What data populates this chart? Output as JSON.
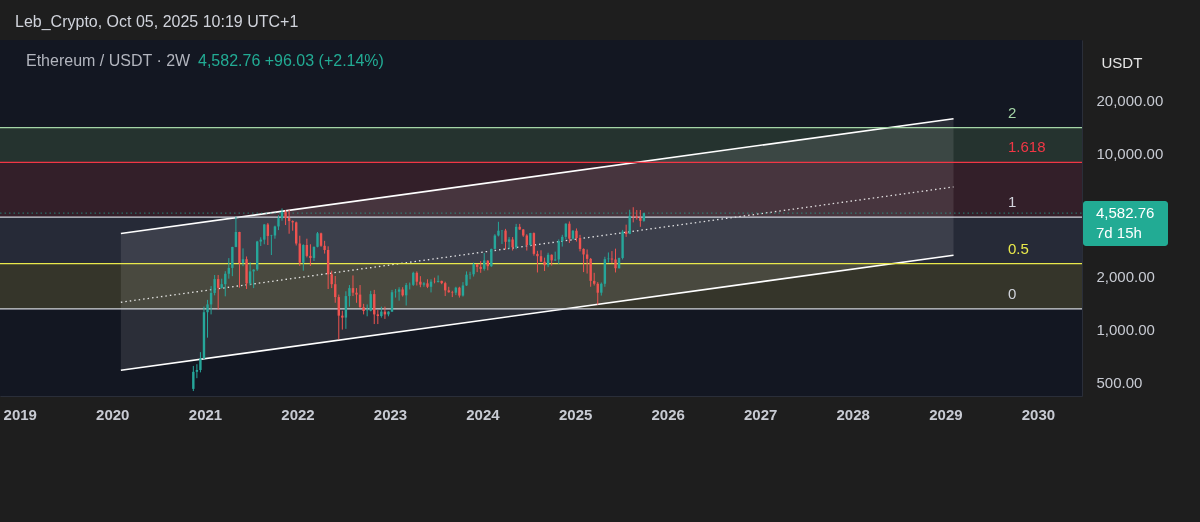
{
  "chart_data": {
    "type": "candlestick",
    "title": "Ethereum / USDT · 2W",
    "subtitle": "4,582.76 +96.03 (+2.14%)",
    "ylabel": "USDT",
    "annotations": [
      "Leb_Crypto, Oct 05, 2025 10:19 UTC+1",
      "7d 15h",
      {
        "text": "2",
        "x": "2029-09-05",
        "y": 14000
      },
      {
        "text": "1.618",
        "x": "2029-09-05",
        "y": 8900
      },
      {
        "text": "1",
        "x": "2029-09-05",
        "y": 4350
      },
      {
        "text": "0.5",
        "x": "2029-09-05",
        "y": 2370
      },
      {
        "text": "0",
        "x": "2029-09-05",
        "y": 1310
      }
    ],
    "log": true,
    "xlim": [
      "2018-10-15",
      "2030-06-24"
    ],
    "xticks": [
      "2019",
      "2020",
      "2021",
      "2022",
      "2023",
      "2024",
      "2025",
      "2026",
      "2027",
      "2028",
      "2029",
      "2030"
    ],
    "ylim": [
      420,
      44000
    ],
    "yticks": [
      {
        "value": 500,
        "label": "500.00"
      },
      {
        "value": 1000,
        "label": "1,000.00"
      },
      {
        "value": 2000,
        "label": "2,000.00"
      },
      {
        "value": 10000,
        "label": "10,000.00"
      },
      {
        "value": 20000,
        "label": "20,000.00"
      }
    ],
    "x": [
      "2020-11-16",
      "2020-11-30",
      "2020-12-14",
      "2020-12-28",
      "2021-01-11",
      "2021-01-25",
      "2021-02-08",
      "2021-02-22",
      "2021-03-08",
      "2021-03-22",
      "2021-04-05",
      "2021-04-19",
      "2021-05-03",
      "2021-05-17",
      "2021-05-31",
      "2021-06-14",
      "2021-06-28",
      "2021-07-12",
      "2021-07-26",
      "2021-08-09",
      "2021-08-23",
      "2021-09-06",
      "2021-09-20",
      "2021-10-04",
      "2021-10-18",
      "2021-11-01",
      "2021-11-15",
      "2021-11-29",
      "2021-12-13",
      "2021-12-27",
      "2022-01-10",
      "2022-01-24",
      "2022-02-07",
      "2022-02-21",
      "2022-03-07",
      "2022-03-21",
      "2022-04-04",
      "2022-04-18",
      "2022-05-02",
      "2022-05-16",
      "2022-05-30",
      "2022-06-13",
      "2022-06-27",
      "2022-07-11",
      "2022-07-25",
      "2022-08-08",
      "2022-08-22",
      "2022-09-05",
      "2022-09-19",
      "2022-10-03",
      "2022-10-17",
      "2022-10-31",
      "2022-11-14",
      "2022-11-28",
      "2022-12-12",
      "2022-12-26",
      "2023-01-09",
      "2023-01-23",
      "2023-02-06",
      "2023-02-20",
      "2023-03-06",
      "2023-03-20",
      "2023-04-03",
      "2023-04-17",
      "2023-05-01",
      "2023-05-15",
      "2023-05-29",
      "2023-06-12",
      "2023-06-26",
      "2023-07-10",
      "2023-07-24",
      "2023-08-07",
      "2023-08-21",
      "2023-09-04",
      "2023-09-18",
      "2023-10-02",
      "2023-10-16",
      "2023-10-30",
      "2023-11-13",
      "2023-11-27",
      "2023-12-11",
      "2023-12-25",
      "2024-01-08",
      "2024-01-22",
      "2024-02-05",
      "2024-02-19",
      "2024-03-04",
      "2024-03-18",
      "2024-04-01",
      "2024-04-15",
      "2024-04-29",
      "2024-05-13",
      "2024-05-27",
      "2024-06-10",
      "2024-06-24",
      "2024-07-08",
      "2024-07-22",
      "2024-08-05",
      "2024-08-19",
      "2024-09-02",
      "2024-09-16",
      "2024-09-30",
      "2024-10-14",
      "2024-10-28",
      "2024-11-11",
      "2024-11-25",
      "2024-12-09",
      "2024-12-23",
      "2025-01-06",
      "2025-01-20",
      "2025-02-03",
      "2025-02-17",
      "2025-03-03",
      "2025-03-17",
      "2025-03-31",
      "2025-04-14",
      "2025-04-28",
      "2025-05-12",
      "2025-05-26",
      "2025-06-09",
      "2025-06-23",
      "2025-07-07",
      "2025-07-21",
      "2025-08-04",
      "2025-08-18",
      "2025-09-01",
      "2025-09-15",
      "2025-09-29"
    ],
    "ohlc": [
      [
        461,
        622,
        448,
        576
      ],
      [
        576,
        636,
        530,
        590
      ],
      [
        590,
        745,
        572,
        685
      ],
      [
        685,
        1350,
        680,
        1255
      ],
      [
        1255,
        1475,
        900,
        1390
      ],
      [
        1390,
        1765,
        1220,
        1615
      ],
      [
        1615,
        2040,
        1565,
        1935
      ],
      [
        1935,
        2040,
        1300,
        1725
      ],
      [
        1725,
        1945,
        1710,
        1810
      ],
      [
        1810,
        2145,
        1545,
        2075
      ],
      [
        2075,
        2545,
        1945,
        2240
      ],
      [
        2240,
        2950,
        2010,
        2945
      ],
      [
        2945,
        4372,
        2935,
        3580
      ],
      [
        3580,
        3590,
        1730,
        2390
      ],
      [
        2390,
        2890,
        2290,
        2510
      ],
      [
        2510,
        2600,
        1700,
        1830
      ],
      [
        1830,
        2410,
        1780,
        2140
      ],
      [
        2140,
        2200,
        1720,
        2190
      ],
      [
        2190,
        3190,
        2150,
        3160
      ],
      [
        3160,
        3340,
        2980,
        3240
      ],
      [
        3240,
        3970,
        3050,
        3950
      ],
      [
        3950,
        4030,
        3020,
        3400
      ],
      [
        3400,
        3450,
        2650,
        3420
      ],
      [
        3420,
        3890,
        3280,
        3850
      ],
      [
        3850,
        4460,
        3670,
        4290
      ],
      [
        4290,
        4870,
        4150,
        4650
      ],
      [
        4650,
        4770,
        3920,
        4300
      ],
      [
        4300,
        4780,
        3500,
        4130
      ],
      [
        4130,
        4170,
        3640,
        4060
      ],
      [
        4060,
        4100,
        3000,
        3080
      ],
      [
        3080,
        3410,
        2300,
        2400
      ],
      [
        2400,
        3050,
        2160,
        3020
      ],
      [
        3020,
        3280,
        2570,
        2620
      ],
      [
        2620,
        3050,
        2300,
        2550
      ],
      [
        2550,
        2960,
        2450,
        2950
      ],
      [
        2950,
        3580,
        2930,
        3520
      ],
      [
        3520,
        3550,
        2950,
        2990
      ],
      [
        2990,
        3190,
        2700,
        2830
      ],
      [
        2830,
        2970,
        1700,
        2060
      ],
      [
        2060,
        2160,
        1720,
        1810
      ],
      [
        1810,
        2015,
        1420,
        1530
      ],
      [
        1530,
        1580,
        880,
        1200
      ],
      [
        1200,
        1280,
        1000,
        1170
      ],
      [
        1170,
        1650,
        1010,
        1550
      ],
      [
        1550,
        1790,
        1350,
        1720
      ],
      [
        1720,
        2030,
        1550,
        1620
      ],
      [
        1620,
        1720,
        1420,
        1580
      ],
      [
        1580,
        1790,
        1330,
        1340
      ],
      [
        1340,
        1400,
        1220,
        1275
      ],
      [
        1275,
        1390,
        1190,
        1280
      ],
      [
        1280,
        1660,
        1270,
        1590
      ],
      [
        1590,
        1680,
        1075,
        1220
      ],
      [
        1220,
        1290,
        1075,
        1195
      ],
      [
        1195,
        1350,
        1170,
        1265
      ],
      [
        1265,
        1350,
        1150,
        1220
      ],
      [
        1220,
        1270,
        1190,
        1265
      ],
      [
        1265,
        1680,
        1260,
        1630
      ],
      [
        1630,
        1700,
        1520,
        1640
      ],
      [
        1640,
        1740,
        1460,
        1690
      ],
      [
        1690,
        1740,
        1540,
        1565
      ],
      [
        1565,
        1840,
        1370,
        1790
      ],
      [
        1790,
        1850,
        1690,
        1795
      ],
      [
        1795,
        2130,
        1770,
        2100
      ],
      [
        2100,
        2140,
        1780,
        1870
      ],
      [
        1870,
        2010,
        1740,
        1800
      ],
      [
        1800,
        1860,
        1750,
        1830
      ],
      [
        1830,
        1930,
        1720,
        1750
      ],
      [
        1750,
        1930,
        1625,
        1870
      ],
      [
        1870,
        1970,
        1830,
        1865
      ],
      [
        1865,
        2030,
        1850,
        1890
      ],
      [
        1890,
        1895,
        1810,
        1835
      ],
      [
        1835,
        1870,
        1550,
        1670
      ],
      [
        1670,
        1750,
        1620,
        1630
      ],
      [
        1630,
        1660,
        1530,
        1620
      ],
      [
        1620,
        1750,
        1570,
        1730
      ],
      [
        1730,
        1750,
        1520,
        1560
      ],
      [
        1560,
        1860,
        1540,
        1780
      ],
      [
        1780,
        2140,
        1770,
        2050
      ],
      [
        2050,
        2130,
        1930,
        2060
      ],
      [
        2060,
        2400,
        2000,
        2350
      ],
      [
        2350,
        2360,
        2120,
        2270
      ],
      [
        2270,
        2450,
        2100,
        2210
      ],
      [
        2210,
        2720,
        2160,
        2470
      ],
      [
        2460,
        2480,
        2170,
        2290
      ],
      [
        2290,
        2880,
        2270,
        2870
      ],
      [
        2870,
        3480,
        2860,
        3420
      ],
      [
        3420,
        4090,
        3380,
        3640
      ],
      [
        3640,
        3670,
        3060,
        3650
      ],
      [
        3650,
        3730,
        2850,
        3150
      ],
      [
        3150,
        3350,
        2860,
        3250
      ],
      [
        3250,
        3350,
        2810,
        2930
      ],
      [
        2930,
        3980,
        2860,
        3830
      ],
      [
        3830,
        3980,
        3680,
        3700
      ],
      [
        3700,
        3720,
        3360,
        3420
      ],
      [
        3420,
        3480,
        2810,
        3020
      ],
      [
        3020,
        3540,
        2990,
        3530
      ],
      [
        3530,
        3560,
        2630,
        2690
      ],
      [
        2690,
        2800,
        2110,
        2610
      ],
      [
        2610,
        2820,
        2420,
        2430
      ],
      [
        2430,
        2560,
        2150,
        2320
      ],
      [
        2320,
        2730,
        2260,
        2660
      ],
      [
        2660,
        2670,
        2310,
        2470
      ],
      [
        2470,
        2770,
        2450,
        2500
      ],
      [
        2500,
        3250,
        2360,
        3180
      ],
      [
        3180,
        3450,
        2960,
        3360
      ],
      [
        3360,
        4010,
        3250,
        3990
      ],
      [
        3990,
        4110,
        3100,
        3280
      ],
      [
        3280,
        3670,
        3240,
        3640
      ],
      [
        3640,
        3750,
        3160,
        3310
      ],
      [
        3310,
        3450,
        2780,
        2870
      ],
      [
        2870,
        2890,
        2120,
        2670
      ],
      [
        2670,
        2850,
        2080,
        2520
      ],
      [
        2520,
        2550,
        1750,
        1890
      ],
      [
        1890,
        2100,
        1780,
        1820
      ],
      [
        1820,
        1860,
        1385,
        1620
      ],
      [
        1620,
        1850,
        1560,
        1820
      ],
      [
        1820,
        2590,
        1750,
        2510
      ],
      [
        2510,
        2740,
        2400,
        2530
      ],
      [
        2530,
        2790,
        2380,
        2500
      ],
      [
        2500,
        2880,
        2110,
        2230
      ],
      [
        2230,
        2560,
        2220,
        2550
      ],
      [
        2550,
        3680,
        2500,
        3600
      ],
      [
        3600,
        3940,
        3360,
        3490
      ],
      [
        3490,
        4790,
        3480,
        4420
      ],
      [
        4420,
        4950,
        4060,
        4390
      ],
      [
        4390,
        4770,
        4210,
        4310
      ],
      [
        4310,
        4770,
        3830,
        4140
      ],
      [
        4140,
        4600,
        4090,
        4582.76
      ]
    ],
    "colors": [
      "#26a69a",
      "#26a69a",
      "#26a69a",
      "#26a69a",
      "#26a69a",
      "#26a69a",
      "#26a69a",
      "#ef5350",
      "#26a69a",
      "#26a69a",
      "#26a69a",
      "#26a69a",
      "#26a69a",
      "#ef5350",
      "#26a69a",
      "#ef5350",
      "#26a69a",
      "#26a69a",
      "#26a69a",
      "#26a69a",
      "#26a69a",
      "#ef5350",
      "#26a69a",
      "#26a69a",
      "#26a69a",
      "#26a69a",
      "#ef5350",
      "#ef5350",
      "#ef5350",
      "#ef5350",
      "#ef5350",
      "#26a69a",
      "#ef5350",
      "#ef5350",
      "#26a69a",
      "#26a69a",
      "#ef5350",
      "#ef5350",
      "#ef5350",
      "#ef5350",
      "#ef5350",
      "#ef5350",
      "#ef5350",
      "#26a69a",
      "#26a69a",
      "#ef5350",
      "#ef5350",
      "#ef5350",
      "#ef5350",
      "#26a69a",
      "#26a69a",
      "#ef5350",
      "#ef5350",
      "#26a69a",
      "#ef5350",
      "#26a69a",
      "#26a69a",
      "#26a69a",
      "#26a69a",
      "#ef5350",
      "#26a69a",
      "#26a69a",
      "#26a69a",
      "#ef5350",
      "#ef5350",
      "#26a69a",
      "#ef5350",
      "#26a69a",
      "#ef5350",
      "#26a69a",
      "#ef5350",
      "#ef5350",
      "#ef5350",
      "#ef5350",
      "#26a69a",
      "#ef5350",
      "#26a69a",
      "#26a69a",
      "#26a69a",
      "#26a69a",
      "#ef5350",
      "#ef5350",
      "#26a69a",
      "#ef5350",
      "#26a69a",
      "#26a69a",
      "#26a69a",
      "#26a69a",
      "#ef5350",
      "#26a69a",
      "#ef5350",
      "#26a69a",
      "#ef5350",
      "#ef5350",
      "#ef5350",
      "#26a69a",
      "#ef5350",
      "#ef5350",
      "#ef5350",
      "#ef5350",
      "#26a69a",
      "#ef5350",
      "#26a69a",
      "#26a69a",
      "#26a69a",
      "#26a69a",
      "#ef5350",
      "#26a69a",
      "#ef5350",
      "#ef5350",
      "#ef5350",
      "#ef5350",
      "#ef5350",
      "#ef5350",
      "#ef5350",
      "#26a69a",
      "#26a69a",
      "#26a69a",
      "#ef5350",
      "#ef5350",
      "#26a69a",
      "#26a69a",
      "#ef5350",
      "#26a69a",
      "#ef5350",
      "#ef5350",
      "#ef5350",
      "#26a69a"
    ],
    "series": [
      {
        "type": "line",
        "x": [
          "2020-02-04",
          "2029-02-02"
        ],
        "values": [
          1430,
          6450
        ],
        "lower": [
          588,
          2645
        ],
        "upper": [
          3510,
          15740
        ],
        "color": "#ffffff",
        "line_style": "dotted"
      },
      {
        "type": "line",
        "x": [
          "2020-02-04",
          "2029-02-02"
        ],
        "values": [
          3510,
          15740
        ],
        "color": "#ffffff"
      },
      {
        "type": "line",
        "x": [
          "2020-02-04",
          "2029-02-02"
        ],
        "values": [
          588,
          2645
        ],
        "color": "#ffffff"
      }
    ],
    "bands": [
      {
        "axis": "y",
        "from": 8900,
        "to": 14000,
        "color": "#25332f"
      },
      {
        "axis": "y",
        "from": 4350,
        "to": 8900,
        "color": "#331f29"
      },
      {
        "axis": "y",
        "from": 2370,
        "to": 4350,
        "color": "#262a37"
      },
      {
        "axis": "y",
        "from": 1310,
        "to": 2370,
        "color": "#35352a"
      }
    ],
    "ref_lines": [
      {
        "axis": "y",
        "value": 14000,
        "color": "#a5d6a7"
      },
      {
        "axis": "y",
        "value": 8900,
        "color": "#f23645"
      },
      {
        "axis": "y",
        "value": 4350,
        "color": "#d1d4dc"
      },
      {
        "axis": "y",
        "value": 2370,
        "color": "#e9e94b"
      },
      {
        "axis": "y",
        "value": 1310,
        "color": "#d1d4dc"
      },
      {
        "axis": "y",
        "value": 4582.76,
        "label": "4,582.76",
        "color": "#22ab94",
        "line_style": "dotted"
      }
    ]
  }
}
